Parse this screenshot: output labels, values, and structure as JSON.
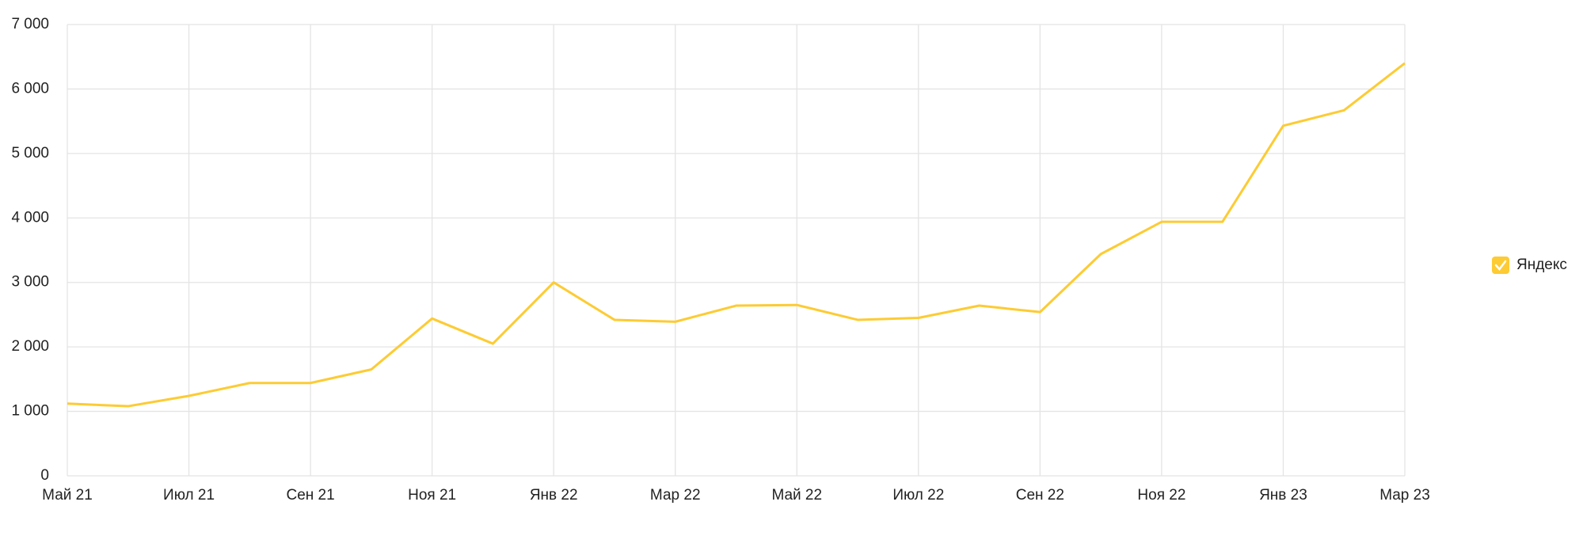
{
  "chart_data": {
    "type": "line",
    "categories": [
      "Май 21",
      null,
      "Июл 21",
      null,
      "Сен 21",
      null,
      "Ноя 21",
      null,
      "Янв 22",
      null,
      "Мар 22",
      null,
      "Май 22",
      null,
      "Июл 22",
      null,
      "Сен 22",
      null,
      "Ноя 22",
      null,
      "Янв 23",
      null,
      "Мар 23"
    ],
    "series": [
      {
        "name": "Яндекс",
        "color": "#fdcb33",
        "values": [
          1120,
          1080,
          1240,
          1440,
          1440,
          1650,
          2440,
          2050,
          3000,
          2420,
          2390,
          2640,
          2650,
          2420,
          2450,
          2640,
          2540,
          3440,
          3940,
          3940,
          5430,
          5670,
          6400
        ]
      }
    ],
    "ylim": [
      0,
      7000
    ],
    "yticks": [
      0,
      {
        "value": 1000,
        "label": "1 000"
      },
      {
        "value": 2000,
        "label": "2 000"
      },
      {
        "value": 3000,
        "label": "3 000"
      },
      {
        "value": 4000,
        "label": "4 000"
      },
      {
        "value": 5000,
        "label": "5 000"
      },
      {
        "value": 6000,
        "label": "6 000"
      },
      {
        "value": 7000,
        "label": "7 000"
      }
    ],
    "grid": true,
    "legend": "right"
  }
}
